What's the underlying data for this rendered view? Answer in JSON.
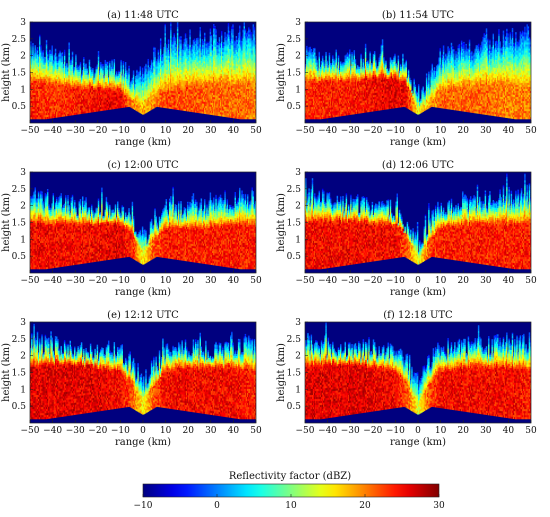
{
  "chart_data": [
    {
      "type": "heatmap",
      "title": "(a) 11:48 UTC",
      "xlabel": "range (km)",
      "ylabel": "height (km)",
      "xlim": [
        -50,
        50
      ],
      "ylim": [
        0,
        3
      ],
      "x_ticks": [
        "-50",
        "-40",
        "-30",
        "-20",
        "-10",
        "0",
        "10",
        "20",
        "30",
        "40",
        "50"
      ],
      "y_ticks": [
        "0.5",
        "1",
        "1.5",
        "2",
        "2.5",
        "3"
      ],
      "profile_x": [
        -50,
        -40,
        -30,
        -20,
        -10,
        -5,
        0,
        5,
        10,
        20,
        30,
        40,
        50
      ],
      "echo_top_km": [
        2.3,
        2.0,
        1.8,
        1.6,
        1.7,
        1.4,
        1.6,
        2.0,
        2.4,
        2.5,
        2.6,
        2.7,
        2.7
      ],
      "core_top_km": [
        1.2,
        1.1,
        1.0,
        0.95,
        0.9,
        0.6,
        0.5,
        0.7,
        0.9,
        1.0,
        1.1,
        1.1,
        1.1
      ],
      "core_dbz": [
        24,
        23,
        24,
        25,
        26,
        20,
        18,
        20,
        22,
        22,
        21,
        21,
        20
      ]
    },
    {
      "type": "heatmap",
      "title": "(b) 11:54 UTC",
      "xlabel": "range (km)",
      "ylabel": "height (km)",
      "xlim": [
        -50,
        50
      ],
      "ylim": [
        0,
        3
      ],
      "x_ticks": [
        "-50",
        "-40",
        "-30",
        "-20",
        "-10",
        "0",
        "10",
        "20",
        "30",
        "40",
        "50"
      ],
      "y_ticks": [
        "0.5",
        "1",
        "1.5",
        "2",
        "2.5",
        "3"
      ],
      "profile_x": [
        -50,
        -40,
        -30,
        -20,
        -10,
        -5,
        0,
        5,
        10,
        20,
        30,
        40,
        50
      ],
      "echo_top_km": [
        2.0,
        1.9,
        1.9,
        1.9,
        1.8,
        1.5,
        0.9,
        1.3,
        2.0,
        2.2,
        2.4,
        2.6,
        2.7
      ],
      "core_top_km": [
        1.2,
        1.2,
        1.2,
        1.3,
        1.3,
        1.1,
        0.4,
        0.6,
        0.9,
        1.0,
        1.1,
        1.1,
        1.0
      ],
      "core_dbz": [
        23,
        24,
        24,
        25,
        26,
        25,
        15,
        18,
        21,
        21,
        21,
        20,
        20
      ]
    },
    {
      "type": "heatmap",
      "title": "(c) 12:00 UTC",
      "xlabel": "range (km)",
      "ylabel": "height (km)",
      "xlim": [
        -50,
        50
      ],
      "ylim": [
        0,
        3
      ],
      "x_ticks": [
        "-50",
        "-40",
        "-30",
        "-20",
        "-10",
        "0",
        "10",
        "20",
        "30",
        "40",
        "50"
      ],
      "y_ticks": [
        "0.5",
        "1",
        "1.5",
        "2",
        "2.5",
        "3"
      ],
      "profile_x": [
        -50,
        -40,
        -30,
        -20,
        -10,
        -5,
        0,
        5,
        10,
        20,
        30,
        40,
        50
      ],
      "echo_top_km": [
        2.3,
        2.2,
        2.0,
        2.0,
        1.9,
        1.6,
        1.0,
        1.5,
        1.9,
        2.0,
        2.1,
        2.2,
        2.3
      ],
      "core_top_km": [
        1.4,
        1.4,
        1.4,
        1.4,
        1.4,
        1.2,
        0.5,
        1.0,
        1.3,
        1.3,
        1.3,
        1.4,
        1.4
      ],
      "core_dbz": [
        25,
        25,
        25,
        25,
        26,
        24,
        15,
        22,
        24,
        24,
        24,
        24,
        24
      ]
    },
    {
      "type": "heatmap",
      "title": "(d) 12:06 UTC",
      "xlabel": "range (km)",
      "ylabel": "height (km)",
      "xlim": [
        -50,
        50
      ],
      "ylim": [
        0,
        3
      ],
      "x_ticks": [
        "-50",
        "-40",
        "-30",
        "-20",
        "-10",
        "0",
        "10",
        "20",
        "30",
        "40",
        "50"
      ],
      "y_ticks": [
        "0.5",
        "1",
        "1.5",
        "2",
        "2.5",
        "3"
      ],
      "profile_x": [
        -50,
        -40,
        -30,
        -20,
        -10,
        -5,
        0,
        5,
        10,
        20,
        30,
        40,
        50
      ],
      "echo_top_km": [
        2.3,
        2.2,
        2.1,
        2.0,
        1.9,
        1.4,
        0.8,
        1.5,
        2.0,
        2.1,
        2.1,
        2.3,
        2.4
      ],
      "core_top_km": [
        1.4,
        1.5,
        1.5,
        1.4,
        1.4,
        1.1,
        0.4,
        0.9,
        1.3,
        1.4,
        1.4,
        1.4,
        1.4
      ],
      "core_dbz": [
        25,
        25,
        25,
        25,
        25,
        22,
        14,
        22,
        24,
        24,
        24,
        24,
        24
      ]
    },
    {
      "type": "heatmap",
      "title": "(e) 12:12 UTC",
      "xlabel": "range (km)",
      "ylabel": "height (km)",
      "xlim": [
        -50,
        50
      ],
      "ylim": [
        0,
        3
      ],
      "x_ticks": [
        "-50",
        "-40",
        "-30",
        "-20",
        "-10",
        "0",
        "10",
        "20",
        "30",
        "40",
        "50"
      ],
      "y_ticks": [
        "0.5",
        "1",
        "1.5",
        "2",
        "2.5",
        "3"
      ],
      "profile_x": [
        -50,
        -40,
        -30,
        -20,
        -10,
        -5,
        0,
        5,
        10,
        20,
        30,
        40,
        50
      ],
      "echo_top_km": [
        2.4,
        2.3,
        2.2,
        2.2,
        2.1,
        1.8,
        1.3,
        1.7,
        2.1,
        2.2,
        2.2,
        2.3,
        2.4
      ],
      "core_top_km": [
        1.6,
        1.7,
        1.7,
        1.6,
        1.5,
        1.2,
        0.6,
        1.1,
        1.5,
        1.6,
        1.6,
        1.6,
        1.5
      ],
      "core_dbz": [
        26,
        26,
        26,
        26,
        25,
        22,
        15,
        22,
        25,
        25,
        25,
        25,
        24
      ]
    },
    {
      "type": "heatmap",
      "title": "(f) 12:18 UTC",
      "xlabel": "range (km)",
      "ylabel": "height (km)",
      "xlim": [
        -50,
        50
      ],
      "ylim": [
        0,
        3
      ],
      "x_ticks": [
        "-50",
        "-40",
        "-30",
        "-20",
        "-10",
        "0",
        "10",
        "20",
        "30",
        "40",
        "50"
      ],
      "y_ticks": [
        "0.5",
        "1",
        "1.5",
        "2",
        "2.5",
        "3"
      ],
      "profile_x": [
        -50,
        -40,
        -30,
        -20,
        -10,
        -5,
        0,
        5,
        10,
        20,
        30,
        40,
        50
      ],
      "echo_top_km": [
        2.4,
        2.3,
        2.2,
        2.2,
        2.1,
        1.8,
        1.2,
        1.8,
        2.2,
        2.3,
        2.3,
        2.4,
        2.4
      ],
      "core_top_km": [
        1.6,
        1.7,
        1.7,
        1.6,
        1.5,
        1.1,
        0.5,
        1.1,
        1.5,
        1.6,
        1.6,
        1.6,
        1.5
      ],
      "core_dbz": [
        26,
        26,
        26,
        26,
        25,
        22,
        14,
        22,
        25,
        25,
        25,
        25,
        24
      ]
    }
  ],
  "colorbar": {
    "label": "Reflectivity factor (dBZ)",
    "min": -10,
    "max": 30,
    "ticks": [
      "-10",
      "0",
      "10",
      "20",
      "30"
    ],
    "colormap": "jet",
    "background_color": "#00007f"
  }
}
